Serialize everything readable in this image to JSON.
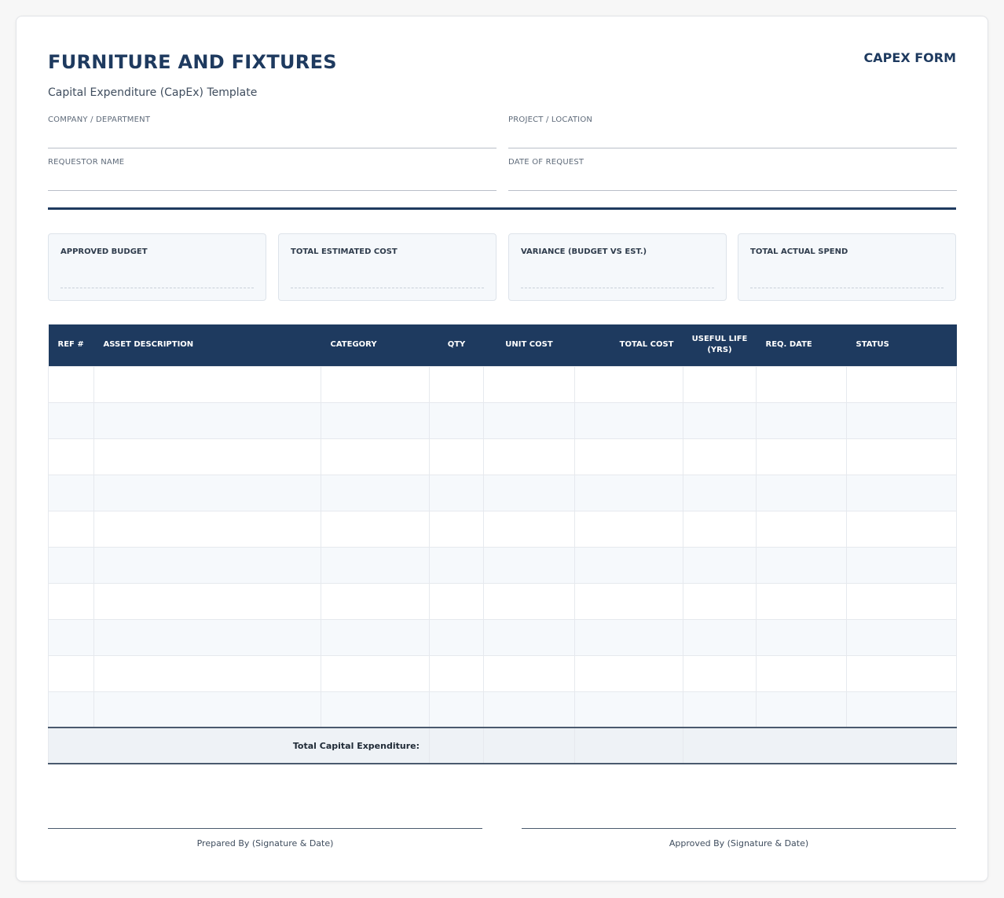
{
  "header": {
    "title": "FURNITURE AND FIXTURES",
    "form_tag": "CAPEX FORM",
    "subtitle": "Capital Expenditure (CapEx) Template"
  },
  "fields": {
    "company": {
      "label": "COMPANY / DEPARTMENT",
      "value": ""
    },
    "project": {
      "label": "PROJECT / LOCATION",
      "value": ""
    },
    "requestor": {
      "label": "REQUESTOR NAME",
      "value": ""
    },
    "date": {
      "label": "DATE OF REQUEST",
      "value": ""
    }
  },
  "summary": [
    {
      "label": "APPROVED BUDGET",
      "value": ""
    },
    {
      "label": "TOTAL ESTIMATED COST",
      "value": ""
    },
    {
      "label": "VARIANCE (BUDGET VS EST.)",
      "value": ""
    },
    {
      "label": "TOTAL ACTUAL SPEND",
      "value": ""
    }
  ],
  "table": {
    "headers": {
      "ref": "REF #",
      "description": "ASSET DESCRIPTION",
      "category": "CATEGORY",
      "qty": "QTY",
      "unit_cost": "UNIT COST",
      "total_cost": "TOTAL COST",
      "useful_life_1": "USEFUL LIFE",
      "useful_life_2": "(YRS)",
      "req_date": "REQ. DATE",
      "status": "STATUS"
    },
    "row_count": 10,
    "total_label": "Total Capital Expenditure:"
  },
  "signatures": {
    "prepared": "Prepared By (Signature & Date)",
    "approved": "Approved By (Signature & Date)"
  },
  "colors": {
    "primary": "#1e3a5f",
    "row_alt": "#f6f9fc",
    "total_row": "#eef2f6"
  }
}
